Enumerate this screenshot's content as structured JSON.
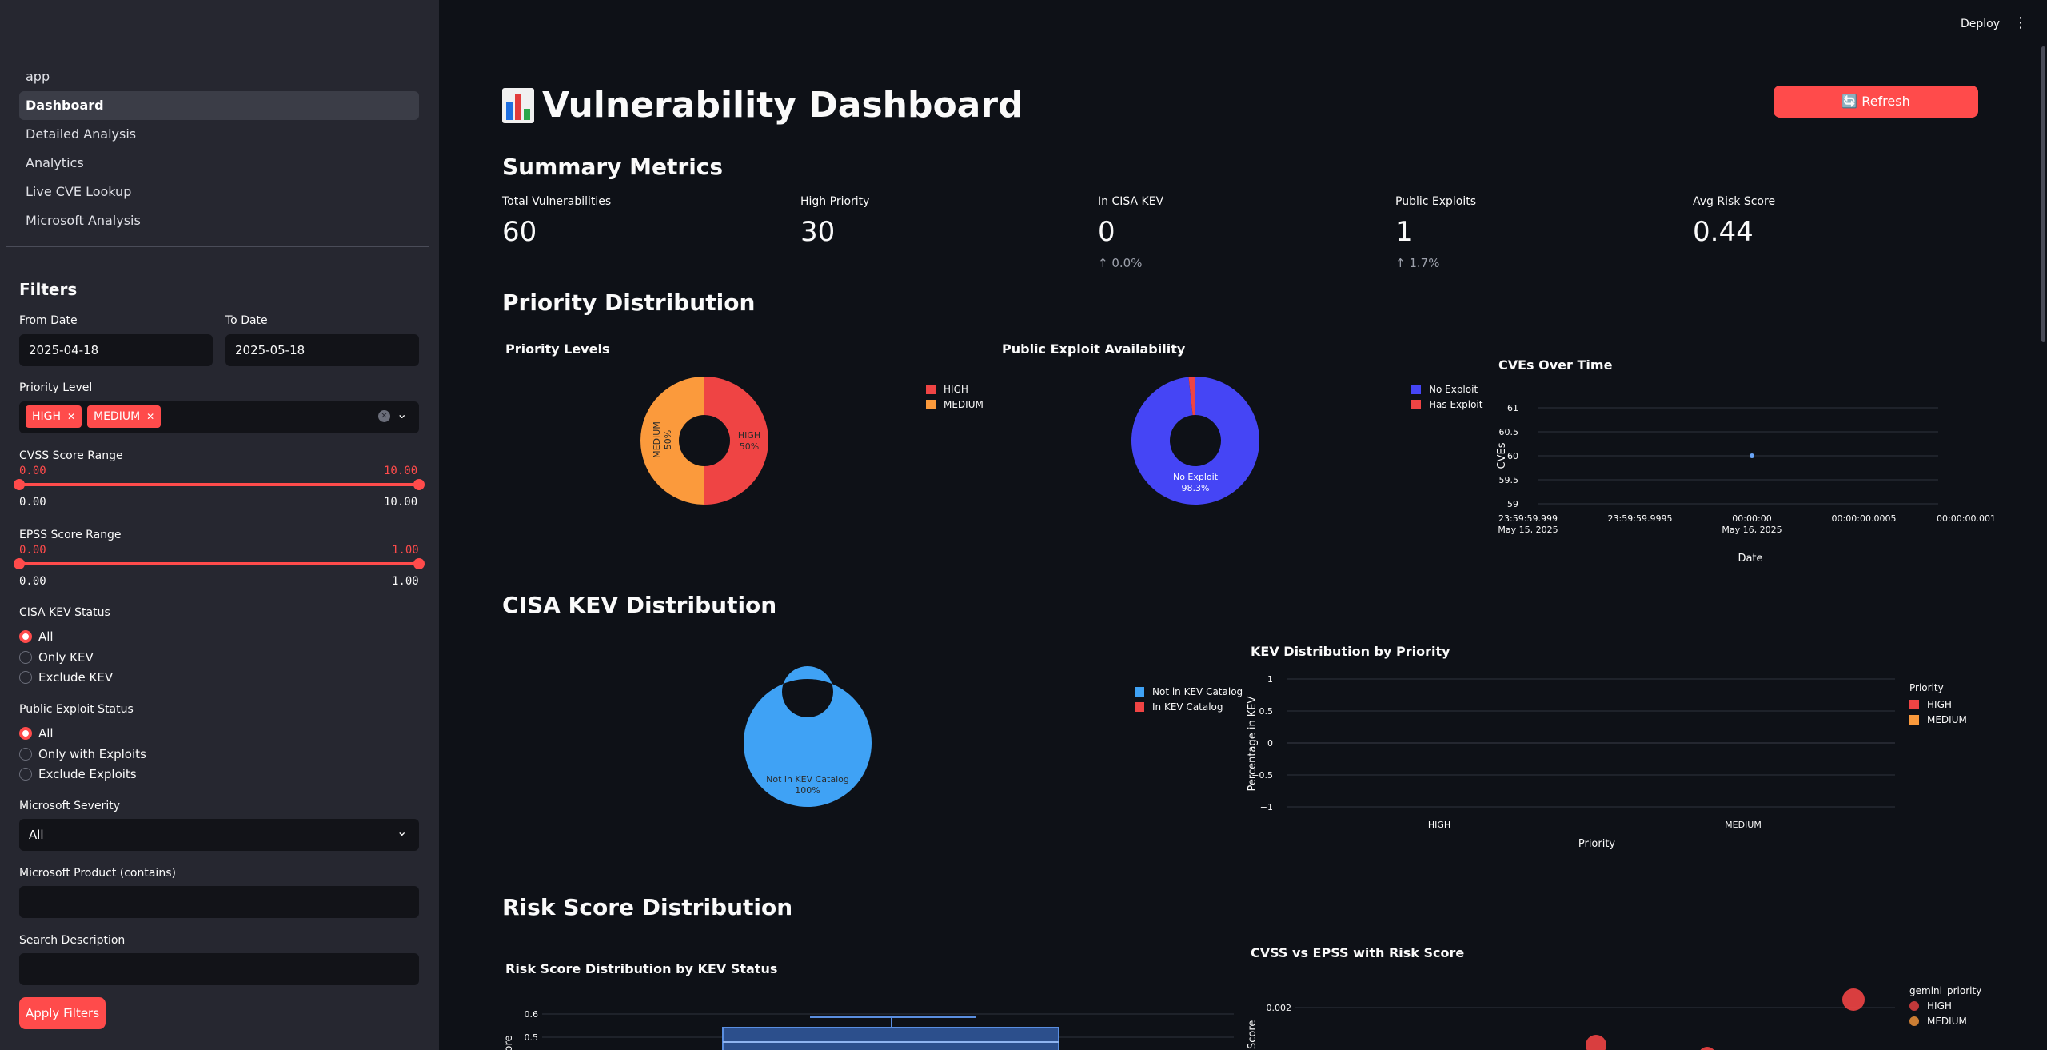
{
  "topbar": {
    "deploy_label": "Deploy",
    "menu_icon": "vertical-ellipsis-icon"
  },
  "sidebar": {
    "nav": [
      {
        "label": "app"
      },
      {
        "label": "Dashboard",
        "active": true
      },
      {
        "label": "Detailed Analysis"
      },
      {
        "label": "Analytics"
      },
      {
        "label": "Live CVE Lookup"
      },
      {
        "label": "Microsoft Analysis"
      }
    ],
    "filters_title": "Filters",
    "from_date": {
      "label": "From Date",
      "value": "2025-04-18"
    },
    "to_date": {
      "label": "To Date",
      "value": "2025-05-18"
    },
    "priority": {
      "label": "Priority Level",
      "tags": [
        "HIGH",
        "MEDIUM"
      ]
    },
    "cvss": {
      "label": "CVSS Score Range",
      "min": "0.00",
      "max": "10.00",
      "low": 0,
      "high": 10
    },
    "epss": {
      "label": "EPSS Score Range",
      "min": "0.00",
      "max": "1.00",
      "low": 0,
      "high": 1
    },
    "kev": {
      "label": "CISA KEV Status",
      "options": [
        "All",
        "Only KEV",
        "Exclude KEV"
      ],
      "selected": 0
    },
    "exploit": {
      "label": "Public Exploit Status",
      "options": [
        "All",
        "Only with Exploits",
        "Exclude Exploits"
      ],
      "selected": 0
    },
    "ms_severity": {
      "label": "Microsoft Severity",
      "value": "All"
    },
    "ms_product": {
      "label": "Microsoft Product (contains)",
      "value": ""
    },
    "search": {
      "label": "Search Description",
      "value": ""
    },
    "apply_label": "Apply Filters"
  },
  "main": {
    "title": "Vulnerability Dashboard",
    "refresh_label": "🔄 Refresh",
    "summary_title": "Summary Metrics",
    "metrics": [
      {
        "label": "Total Vulnerabilities",
        "value": "60",
        "delta": ""
      },
      {
        "label": "High Priority",
        "value": "30",
        "delta": ""
      },
      {
        "label": "In CISA KEV",
        "value": "0",
        "delta": "0.0%"
      },
      {
        "label": "Public Exploits",
        "value": "1",
        "delta": "1.7%"
      },
      {
        "label": "Avg Risk Score",
        "value": "0.44",
        "delta": ""
      }
    ],
    "priority_section": "Priority Distribution",
    "kev_section": "CISA KEV Distribution",
    "risk_section": "Risk Score Distribution"
  },
  "colors": {
    "accent": "#ff4b4b",
    "high": "#ef4444",
    "medium": "#fb9a3c",
    "no_exploit": "#4545f5",
    "not_kev": "#3fa2f5"
  },
  "chart_data": [
    {
      "type": "pie",
      "title": "Priority Levels",
      "categories": [
        "HIGH",
        "MEDIUM"
      ],
      "values": [
        50,
        50
      ],
      "slice_labels": [
        "HIGH\n50%",
        "MEDIUM\n50%"
      ],
      "colors": [
        "#ef4444",
        "#fb9a3c"
      ],
      "legend": [
        "HIGH",
        "MEDIUM"
      ],
      "legend_position": "right"
    },
    {
      "type": "pie",
      "title": "Public Exploit Availability",
      "categories": [
        "No Exploit",
        "Has Exploit"
      ],
      "values": [
        98.3,
        1.7
      ],
      "slice_labels": [
        "No Exploit\n98.3%"
      ],
      "colors": [
        "#4545f5",
        "#ef4444"
      ],
      "legend": [
        "No Exploit",
        "Has Exploit"
      ],
      "legend_position": "right"
    },
    {
      "type": "line",
      "title": "CVEs Over Time",
      "x_ticks": [
        "23:59:59.999\nMay 15, 2025",
        "23:59:59.9995",
        "00:00:00\nMay 16, 2025",
        "00:00:00.0005",
        "00:00:00.001"
      ],
      "y_ticks": [
        "61",
        "60.5",
        "60",
        "59.5",
        "59"
      ],
      "points": [
        {
          "x": "00:00:00 May 16, 2025",
          "y": 60
        }
      ],
      "xlabel": "Date",
      "ylabel": "CVEs",
      "ylim": [
        59,
        61
      ]
    },
    {
      "type": "pie",
      "title": "",
      "categories": [
        "Not in KEV Catalog",
        "In KEV Catalog"
      ],
      "values": [
        100,
        0
      ],
      "slice_labels": [
        "Not in KEV Catalog\n100%"
      ],
      "colors": [
        "#3fa2f5",
        "#ef4444"
      ],
      "legend": [
        "Not in KEV Catalog",
        "In KEV Catalog"
      ],
      "legend_position": "right"
    },
    {
      "type": "bar",
      "title": "KEV Distribution by Priority",
      "categories": [
        "HIGH",
        "MEDIUM"
      ],
      "series": [
        {
          "name": "HIGH",
          "values": [
            0,
            0
          ]
        },
        {
          "name": "MEDIUM",
          "values": [
            0,
            0
          ]
        }
      ],
      "y_ticks": [
        "1",
        "0.5",
        "0",
        "−0.5",
        "−1"
      ],
      "xlabel": "Priority",
      "ylabel": "Percentage in KEV",
      "ylim": [
        -1,
        1
      ],
      "legend_title": "Priority"
    },
    {
      "type": "bar",
      "title": "Risk Score Distribution by KEV Status",
      "y_ticks": [
        "0.6",
        "0.5"
      ],
      "ylabel": "ore"
    },
    {
      "type": "scatter",
      "title": "CVSS vs EPSS with Risk Score",
      "y_ticks": [
        "0.002"
      ],
      "ylabel": "S Score",
      "legend_title": "gemini_priority",
      "series": [
        {
          "name": "HIGH"
        },
        {
          "name": "MEDIUM"
        }
      ]
    }
  ]
}
